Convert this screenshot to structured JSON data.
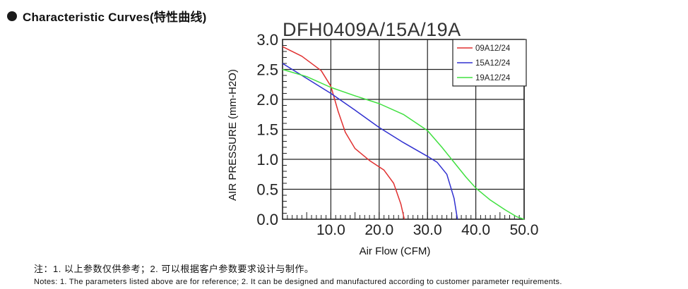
{
  "header": {
    "title": "Characteristic Curves(特性曲线)"
  },
  "chart_data": {
    "type": "line",
    "title": "DFH0409A/15A/19A",
    "xlabel": "Air Flow (CFM)",
    "ylabel": "AIR PRESSURE (mm-H2O)",
    "xlim": [
      0,
      50
    ],
    "ylim": [
      0,
      3
    ],
    "x_ticks": [
      10,
      20,
      30,
      40,
      50
    ],
    "x_tick_labels": [
      "10.0",
      "20.0",
      "30.0",
      "40.0",
      "50.0"
    ],
    "y_ticks": [
      0,
      0.5,
      1,
      1.5,
      2,
      2.5,
      3
    ],
    "y_tick_labels": [
      "0.0",
      "0.5",
      "1.0",
      "1.5",
      "2.0",
      "2.5",
      "3.0"
    ],
    "grid": true,
    "legend_position": "top-right",
    "series": [
      {
        "name": "09A12/24",
        "color": "#e03030",
        "points": [
          [
            0,
            2.88
          ],
          [
            4,
            2.72
          ],
          [
            8,
            2.48
          ],
          [
            10,
            2.22
          ],
          [
            11.5,
            1.8
          ],
          [
            13,
            1.45
          ],
          [
            15,
            1.18
          ],
          [
            18,
            0.98
          ],
          [
            21,
            0.82
          ],
          [
            23,
            0.6
          ],
          [
            24.5,
            0.25
          ],
          [
            25.2,
            0.0
          ]
        ]
      },
      {
        "name": "15A12/24",
        "color": "#3030d0",
        "points": [
          [
            0,
            2.6
          ],
          [
            5,
            2.35
          ],
          [
            10,
            2.1
          ],
          [
            15,
            1.82
          ],
          [
            20,
            1.53
          ],
          [
            25,
            1.28
          ],
          [
            30,
            1.05
          ],
          [
            32,
            0.95
          ],
          [
            34,
            0.75
          ],
          [
            35.5,
            0.35
          ],
          [
            36.2,
            0.0
          ]
        ]
      },
      {
        "name": "19A12/24",
        "color": "#40e040",
        "points": [
          [
            0,
            2.5
          ],
          [
            5,
            2.38
          ],
          [
            10,
            2.2
          ],
          [
            15,
            2.06
          ],
          [
            20,
            1.93
          ],
          [
            25,
            1.75
          ],
          [
            30,
            1.48
          ],
          [
            33,
            1.2
          ],
          [
            36,
            0.9
          ],
          [
            38,
            0.7
          ],
          [
            40,
            0.52
          ],
          [
            43,
            0.32
          ],
          [
            46,
            0.16
          ],
          [
            48.5,
            0.04
          ],
          [
            50,
            0.0
          ]
        ]
      }
    ]
  },
  "notes": {
    "chinese": "注：1. 以上参数仅供参考；2. 可以根据客户参数要求设计与制作。",
    "english": "Notes: 1. The parameters listed above are for reference; 2. It can be designed and manufactured according to customer parameter requirements."
  }
}
